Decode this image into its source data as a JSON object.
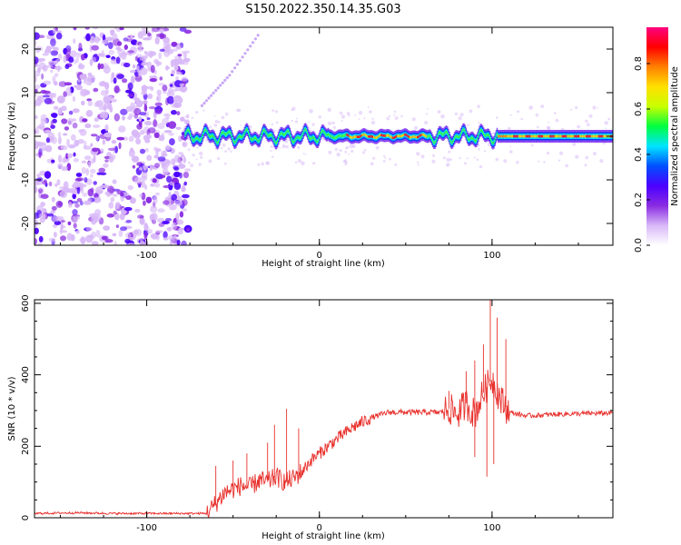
{
  "title": "S150.2022.350.14.35.G03",
  "chart_data": [
    {
      "type": "heatmap",
      "xlabel": "Height of straight line (km)",
      "ylabel": "Frequency (Hz)",
      "xlim": [
        -165,
        170
      ],
      "ylim": [
        -25,
        25
      ],
      "xticks": [
        -100,
        0,
        100
      ],
      "yticks": [
        -20,
        -10,
        0,
        10,
        20
      ],
      "colorbar": {
        "label": "Normalized spectral amplitude",
        "range": [
          0,
          0.96
        ],
        "ticks": [
          0.0,
          0.2,
          0.4,
          0.6,
          0.8
        ],
        "colormap": [
          "#ffffff",
          "#d8b8f8",
          "#8a2be2",
          "#4b00ff",
          "#0050ff",
          "#00e5ff",
          "#00ff40",
          "#c8ff00",
          "#ffe000",
          "#ff8000",
          "#ff0000",
          "#ff0080"
        ]
      },
      "features": {
        "noise_region_x": [
          -165,
          -76
        ],
        "carrier_frequency_hz": 0,
        "carrier_start_x": -78,
        "carrier_steady_from_x": 103,
        "peak_amplitude_segments_x": [
          [
            15,
            62
          ],
          [
            108,
            170
          ]
        ],
        "chirp_line": {
          "x": [
            -68,
            -52,
            -34
          ],
          "y": [
            7,
            14,
            24
          ]
        }
      }
    },
    {
      "type": "line",
      "xlabel": "Height of straight line (km)",
      "ylabel": "SNR (10 * v/v)",
      "xlim": [
        -165,
        170
      ],
      "ylim": [
        0,
        610
      ],
      "xticks": [
        -100,
        0,
        100
      ],
      "yticks": [
        0,
        200,
        400,
        600
      ],
      "color": "#e8312d",
      "x": [
        -165,
        -140,
        -120,
        -100,
        -80,
        -65,
        -60,
        -55,
        -50,
        -45,
        -40,
        -35,
        -30,
        -25,
        -20,
        -15,
        -10,
        -5,
        0,
        10,
        20,
        30,
        40,
        50,
        60,
        70,
        75,
        80,
        85,
        90,
        95,
        100,
        105,
        108,
        110,
        120,
        140,
        170
      ],
      "y": [
        12,
        14,
        12,
        12,
        12,
        12,
        40,
        70,
        80,
        90,
        85,
        105,
        100,
        115,
        100,
        110,
        130,
        160,
        180,
        220,
        255,
        280,
        295,
        295,
        295,
        295,
        305,
        290,
        320,
        290,
        350,
        390,
        330,
        310,
        295,
        285,
        290,
        293
      ],
      "spikes": [
        {
          "x": -60,
          "y": 145
        },
        {
          "x": -50,
          "y": 160
        },
        {
          "x": -42,
          "y": 180
        },
        {
          "x": -30,
          "y": 210
        },
        {
          "x": -26,
          "y": 260
        },
        {
          "x": -19,
          "y": 305
        },
        {
          "x": -12,
          "y": 250
        },
        {
          "x": 75,
          "y": 355
        },
        {
          "x": 85,
          "y": 410
        },
        {
          "x": 90,
          "y": 440
        },
        {
          "x": 95,
          "y": 485
        },
        {
          "x": 99,
          "y": 610
        },
        {
          "x": 103,
          "y": 560
        },
        {
          "x": 108,
          "y": 500
        },
        {
          "x": 97,
          "y": 115
        },
        {
          "x": 101,
          "y": 150
        },
        {
          "x": 90,
          "y": 170
        }
      ]
    }
  ]
}
